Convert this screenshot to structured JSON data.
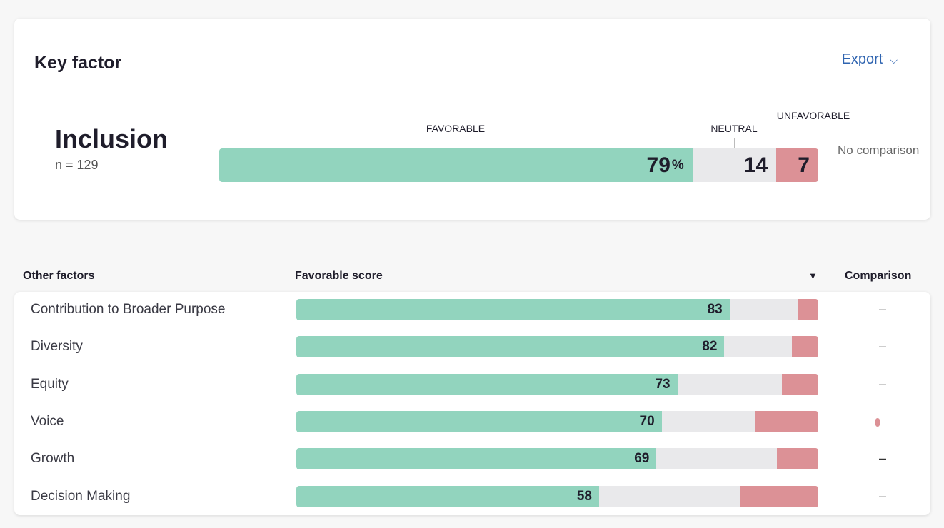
{
  "key_factor": {
    "title": "Key factor",
    "export_label": "Export",
    "name": "Inclusion",
    "n": "n = 129",
    "labels": {
      "favorable": "FAVORABLE",
      "neutral": "NEUTRAL",
      "unfavorable": "UNFAVORABLE"
    },
    "favorable": 79,
    "favorable_text": "79",
    "pct": "%",
    "neutral": 14,
    "neutral_text": "14",
    "unfavorable": 7,
    "unfavorable_text": "7",
    "comparison": "No comparison"
  },
  "table": {
    "headers": {
      "factor": "Other factors",
      "score": "Favorable score",
      "comparison": "Comparison"
    },
    "rows": [
      {
        "name": "Contribution to Broader Purpose",
        "favorable": 83,
        "label": "83",
        "neutral": 13,
        "unfavorable": 4,
        "comparison": "–"
      },
      {
        "name": "Diversity",
        "favorable": 82,
        "label": "82",
        "neutral": 13,
        "unfavorable": 5,
        "comparison": "–"
      },
      {
        "name": "Equity",
        "favorable": 73,
        "label": "73",
        "neutral": 20,
        "unfavorable": 7,
        "comparison": "–"
      },
      {
        "name": "Voice",
        "favorable": 70,
        "label": "70",
        "neutral": 18,
        "unfavorable": 12,
        "comparison": ""
      },
      {
        "name": "Growth",
        "favorable": 69,
        "label": "69",
        "neutral": 23,
        "unfavorable": 8,
        "comparison": "–"
      },
      {
        "name": "Decision Making",
        "favorable": 58,
        "label": "58",
        "neutral": 27,
        "unfavorable": 15,
        "comparison": "–"
      }
    ]
  },
  "colors": {
    "favorable": "#92d4be",
    "neutral": "#e9e9eb",
    "unfavorable": "#dc9196",
    "accent": "#2f64b0"
  }
}
